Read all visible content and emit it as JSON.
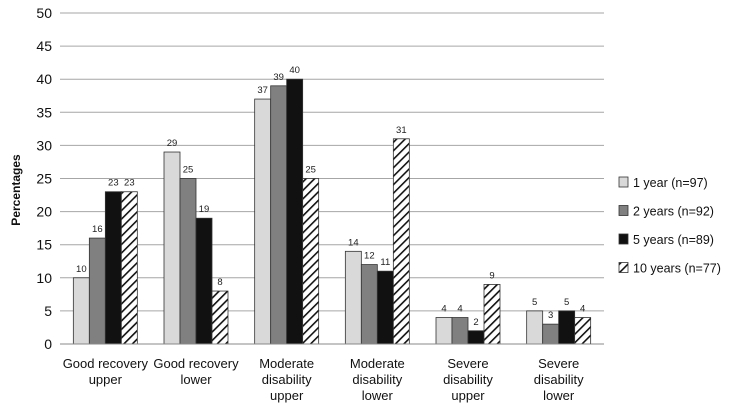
{
  "chart_data": {
    "type": "bar",
    "ylabel": "Percentages",
    "ylim": [
      0,
      50
    ],
    "yticks": [
      0,
      5,
      10,
      15,
      20,
      25,
      30,
      35,
      40,
      45,
      50
    ],
    "grid": true,
    "legend_position": "right",
    "categories": [
      [
        "Good recovery",
        "upper"
      ],
      [
        "Good recovery",
        "lower"
      ],
      [
        "Moderate",
        "disability",
        "upper"
      ],
      [
        "Moderate",
        "disability",
        "lower"
      ],
      [
        "Severe",
        "disability",
        "upper"
      ],
      [
        "Severe",
        "disability",
        "lower"
      ]
    ],
    "series": [
      {
        "name": "1 year  (n=97)",
        "values": [
          10,
          29,
          37,
          14,
          4,
          5
        ],
        "fill": "#d9d9d9",
        "pattern": "solid"
      },
      {
        "name": "2 years  (n=92)",
        "values": [
          16,
          25,
          39,
          12,
          4,
          3
        ],
        "fill": "#808080",
        "pattern": "solid"
      },
      {
        "name": "5 years  (n=89)",
        "values": [
          23,
          19,
          40,
          11,
          2,
          5
        ],
        "fill": "#111111",
        "pattern": "solid"
      },
      {
        "name": "10 years (n=77)",
        "values": [
          23,
          8,
          25,
          31,
          9,
          4
        ],
        "fill": "#ffffff",
        "pattern": "diagonal-hatch"
      }
    ]
  }
}
